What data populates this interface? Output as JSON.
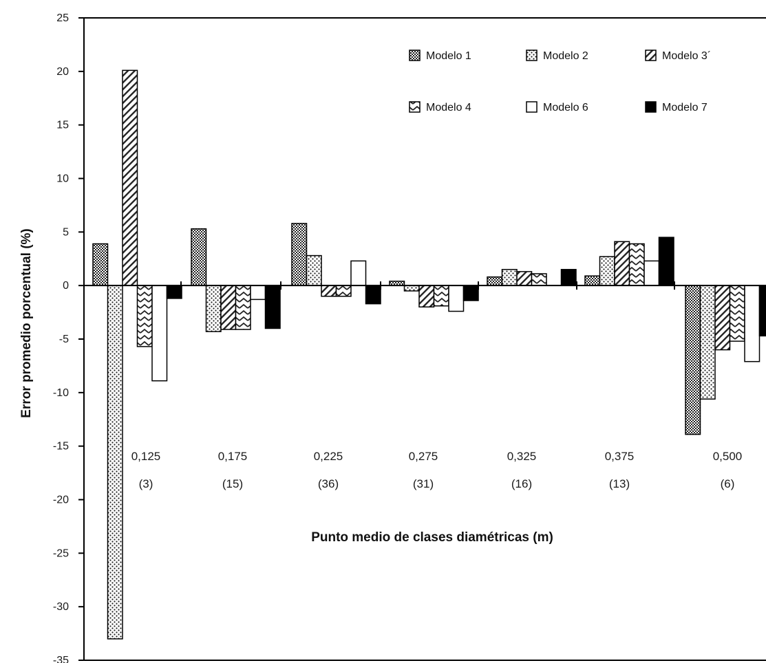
{
  "chart_data": {
    "type": "bar",
    "xlabel": "Punto medio de clases diamétricas (m)",
    "ylabel": "Error promedio porcentual (%)",
    "ylim": [
      -35,
      25
    ],
    "yticks": [
      25,
      20,
      15,
      10,
      5,
      0,
      -5,
      -10,
      -15,
      -20,
      -25,
      -30,
      -35
    ],
    "categories": [
      "0,125",
      "0,175",
      "0,225",
      "0,275",
      "0,325",
      "0,375",
      "0,500"
    ],
    "category_counts": [
      "(3)",
      "(15)",
      "(36)",
      "(31)",
      "(16)",
      "(13)",
      "(6)"
    ],
    "legend_position": "top-right",
    "series": [
      {
        "name": "Modelo 1",
        "pattern": "crosshatch",
        "values": [
          3.9,
          5.3,
          5.8,
          0.4,
          0.8,
          0.9,
          -13.9
        ]
      },
      {
        "name": "Modelo 2",
        "pattern": "dots",
        "values": [
          -33.0,
          -4.3,
          2.8,
          -0.5,
          1.5,
          2.7,
          -10.6
        ]
      },
      {
        "name": "Modelo 3´",
        "pattern": "diagonal",
        "values": [
          20.1,
          -4.1,
          -1.0,
          -2.0,
          1.3,
          4.1,
          -6.0
        ]
      },
      {
        "name": "Modelo 4",
        "pattern": "zigzag",
        "values": [
          -5.7,
          -4.1,
          -1.0,
          -1.9,
          1.1,
          3.9,
          -5.2
        ]
      },
      {
        "name": "Modelo 6",
        "pattern": "white",
        "values": [
          -8.9,
          -1.3,
          2.3,
          -2.4,
          0.0,
          2.3,
          -7.1
        ]
      },
      {
        "name": "Modelo 7",
        "pattern": "black",
        "values": [
          -1.2,
          -4.0,
          -1.7,
          -1.4,
          1.5,
          4.5,
          -4.7
        ]
      }
    ]
  }
}
